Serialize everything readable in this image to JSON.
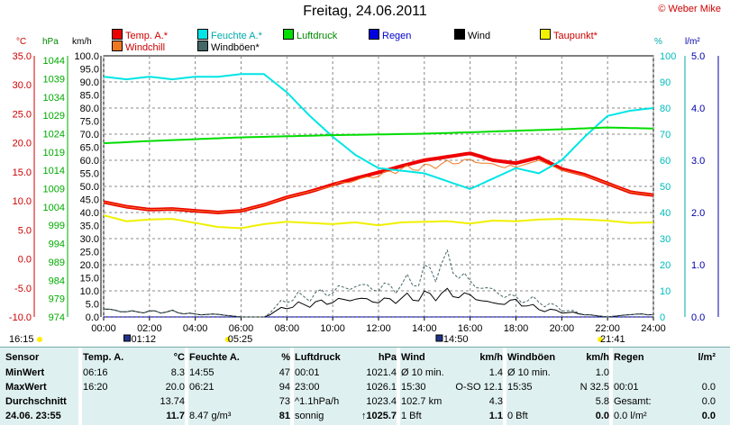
{
  "title": "Freitag, 24.06.2011",
  "copyright": "© Weber Mike",
  "legend": [
    {
      "label": "Temp. A.*",
      "color": "#ee0000"
    },
    {
      "label": "Feuchte A.*",
      "color": "#00e5e5"
    },
    {
      "label": "Luftdruck",
      "color": "#00dd00"
    },
    {
      "label": "Regen",
      "color": "#0000dd"
    },
    {
      "label": "Wind",
      "color": "#000000"
    },
    {
      "label": "Taupunkt*",
      "color": "#f0f000"
    },
    {
      "label": "Windchill",
      "color": "#ee7722"
    },
    {
      "label": "Windböen*",
      "color": "#446666"
    }
  ],
  "units": {
    "temp": "°C",
    "pressure": "hPa",
    "wind": "km/h",
    "humidity": "%",
    "rain": "l/m²"
  },
  "chart_data": {
    "type": "line",
    "title": "Freitag, 24.06.2011",
    "x_ticks": [
      "00:00",
      "02:00",
      "04:00",
      "06:00",
      "08:00",
      "10:00",
      "12:00",
      "14:00",
      "16:00",
      "18:00",
      "20:00",
      "22:00",
      "24:00"
    ],
    "y_axes": {
      "temp_c": {
        "ticks": [
          "35.0",
          "30.0",
          "25.0",
          "20.0",
          "15.0",
          "10.0",
          "5.0",
          "0.0",
          "-5.0",
          "-10.0"
        ],
        "range": [
          -10,
          35
        ],
        "color": "#ee0000"
      },
      "pressure_hpa": {
        "ticks": [
          "1044",
          "1039",
          "1034",
          "1029",
          "1024",
          "1019",
          "1014",
          "1009",
          "1004",
          "999",
          "994",
          "989",
          "984",
          "979",
          "974"
        ],
        "range": [
          974,
          1045.25
        ],
        "color": "#00aa00"
      },
      "wind_kmh": {
        "ticks": [
          "100.0",
          "95.0",
          "90.0",
          "85.0",
          "80.0",
          "75.0",
          "70.0",
          "65.0",
          "60.0",
          "55.0",
          "50.0",
          "45.0",
          "40.0",
          "35.0",
          "30.0",
          "25.0",
          "20.0",
          "15.0",
          "10.0",
          "5.0",
          "0.0"
        ],
        "range": [
          0,
          100
        ],
        "color": "#000000"
      },
      "humidity_pct": {
        "ticks": [
          "100",
          "90",
          "80",
          "70",
          "60",
          "50",
          "40",
          "30",
          "20",
          "10",
          "0"
        ],
        "range": [
          0,
          100
        ],
        "color": "#00bbbb"
      },
      "rain_lm2": {
        "ticks": [
          "5.0",
          "4.0",
          "3.0",
          "2.0",
          "1.0",
          "0.0"
        ],
        "range": [
          0,
          5
        ],
        "color": "#0000aa"
      }
    },
    "series": [
      {
        "name": "Temp. A.*",
        "axis": "temp_c",
        "color": "#ee0000",
        "width": 4,
        "x": [
          0,
          1,
          2,
          3,
          4,
          5,
          6,
          7,
          8,
          9,
          10,
          11,
          12,
          13,
          14,
          15,
          16,
          17,
          18,
          19,
          20,
          21,
          22,
          23,
          24
        ],
        "y": [
          9.8,
          9.0,
          8.5,
          8.6,
          8.3,
          8.0,
          8.3,
          9.3,
          10.6,
          11.6,
          12.8,
          13.9,
          14.9,
          16.0,
          17.0,
          17.6,
          18.2,
          17.0,
          16.5,
          17.5,
          15.5,
          14.5,
          13.0,
          11.5,
          11.0
        ]
      },
      {
        "name": "Windchill",
        "axis": "temp_c",
        "color": "#ee7722",
        "width": 1,
        "x": [
          0,
          1,
          2,
          3,
          4,
          5,
          6,
          7,
          8,
          9,
          10,
          11,
          12,
          13,
          14,
          15,
          16,
          17,
          18,
          19,
          20,
          21,
          22,
          23,
          24
        ],
        "y": [
          9.8,
          9.0,
          8.5,
          8.6,
          8.3,
          8.0,
          8.3,
          9.3,
          10.6,
          11.6,
          12.6,
          13.6,
          14.4,
          15.5,
          15.8,
          16.5,
          17.0,
          16.2,
          15.8,
          17.0,
          15.3,
          14.4,
          13.0,
          11.5,
          11.0
        ]
      },
      {
        "name": "Feuchte A.*",
        "axis": "humidity_pct",
        "color": "#00e5e5",
        "width": 2,
        "x": [
          0,
          1,
          2,
          3,
          4,
          5,
          6,
          7,
          8,
          9,
          10,
          11,
          12,
          13,
          14,
          15,
          16,
          17,
          18,
          19,
          20,
          21,
          22,
          23,
          24
        ],
        "y": [
          92,
          91,
          92,
          91,
          92,
          92,
          93,
          93,
          86,
          77,
          69,
          62,
          57,
          56,
          55,
          52,
          49,
          53,
          57,
          55,
          60,
          69,
          77,
          79,
          80
        ]
      },
      {
        "name": "Taupunkt*",
        "axis": "temp_c",
        "color": "#f0f000",
        "width": 2,
        "x": [
          0,
          1,
          2,
          3,
          4,
          5,
          6,
          7,
          8,
          9,
          10,
          11,
          12,
          13,
          14,
          15,
          16,
          17,
          18,
          19,
          20,
          21,
          22,
          23,
          24
        ],
        "y": [
          7.5,
          6.5,
          6.8,
          6.9,
          6.2,
          5.5,
          5.3,
          6.0,
          6.4,
          6.2,
          6.0,
          6.3,
          5.8,
          6.3,
          6.4,
          6.5,
          6.1,
          6.6,
          6.5,
          6.8,
          6.9,
          6.8,
          6.6,
          6.2,
          6.3
        ]
      },
      {
        "name": "Luftdruck",
        "axis": "pressure_hpa",
        "color": "#00dd00",
        "width": 2,
        "x": [
          0,
          2,
          4,
          6,
          8,
          10,
          12,
          14,
          16,
          18,
          20,
          22,
          24
        ],
        "y": [
          1021.4,
          1022.0,
          1022.5,
          1023.0,
          1023.3,
          1023.6,
          1023.8,
          1024.0,
          1024.4,
          1024.8,
          1025.2,
          1025.7,
          1025.4
        ]
      },
      {
        "name": "Regen",
        "axis": "rain_lm2",
        "color": "#0000dd",
        "width": 1,
        "dashed": true,
        "x": [
          0,
          24
        ],
        "y": [
          0.0,
          0.0
        ]
      },
      {
        "name": "Wind",
        "axis": "wind_kmh",
        "color": "#000000",
        "width": 1,
        "x": [
          0,
          1,
          2,
          3,
          4,
          5,
          6,
          7,
          8,
          9,
          10,
          11,
          12,
          13,
          14,
          15,
          16,
          17,
          18,
          19,
          20,
          21,
          22,
          23,
          24
        ],
        "y": [
          3,
          2,
          2,
          2,
          1,
          1,
          0,
          0,
          4,
          5,
          6,
          7,
          6,
          7,
          8,
          9,
          8,
          5,
          6,
          3,
          2,
          1,
          0,
          1,
          1
        ]
      },
      {
        "name": "Windböen*",
        "axis": "wind_kmh",
        "color": "#446666",
        "width": 1,
        "dashed": true,
        "x": [
          0,
          1,
          2,
          3,
          4,
          5,
          6,
          7,
          8,
          9,
          10,
          11,
          12,
          13,
          14,
          15,
          16,
          17,
          18,
          19,
          20,
          21,
          22,
          23,
          24
        ],
        "y": [
          3,
          2,
          2,
          2,
          1,
          1,
          0,
          0,
          7,
          8,
          10,
          12,
          11,
          12,
          16,
          21,
          13,
          10,
          7,
          6,
          3,
          1,
          0,
          1,
          1
        ]
      }
    ],
    "grid": true,
    "legend_position": "top"
  },
  "time_markers": {
    "sunrise": "05:25",
    "sunset": "21:41",
    "moonrise": "01:12",
    "moonset": "14:50",
    "left_time": "16:15"
  },
  "table": {
    "row_labels": [
      "Sensor",
      "MinWert",
      "MaxWert",
      "Durchschnitt",
      "24.06. 23:55"
    ],
    "columns": [
      {
        "header": "Temp. A.",
        "unit": "°C",
        "rows": [
          [
            "06:16",
            "8.3"
          ],
          [
            "16:20",
            "20.0"
          ],
          [
            "",
            "13.74"
          ],
          [
            "",
            "11.7"
          ]
        ]
      },
      {
        "header": "Feuchte A.",
        "unit": "%",
        "rows": [
          [
            "14:55",
            "47"
          ],
          [
            "06:21",
            "94"
          ],
          [
            "",
            "73"
          ],
          [
            "8.47 g/m³",
            "81"
          ]
        ]
      },
      {
        "header": "Luftdruck",
        "unit": "hPa",
        "rows": [
          [
            "00:01",
            "1021.4"
          ],
          [
            "23:00",
            "1026.1"
          ],
          [
            "^1.1hPa/h",
            "1023.4"
          ],
          [
            "sonnig",
            "↑1025.7"
          ]
        ]
      },
      {
        "header": "Wind",
        "unit": "km/h",
        "rows": [
          [
            "Ø 10 min.",
            "1.4"
          ],
          [
            "15:30",
            "O-SO 12.1"
          ],
          [
            "102.7 km",
            "4.3"
          ],
          [
            "1 Bft",
            "1.1"
          ]
        ]
      },
      {
        "header": "Windböen",
        "unit": "km/h",
        "rows": [
          [
            "Ø 10 min.",
            "1.0"
          ],
          [
            "15:35",
            "N 32.5"
          ],
          [
            "",
            "5.8"
          ],
          [
            "0 Bft",
            "0.0"
          ]
        ]
      },
      {
        "header": "Regen",
        "unit": "l/m²",
        "rows": [
          [
            "",
            ""
          ],
          [
            "00:01",
            "0.0"
          ],
          [
            "Gesamt:",
            "0.0"
          ],
          [
            "0.0 l/m²",
            "0.0"
          ]
        ]
      }
    ]
  }
}
